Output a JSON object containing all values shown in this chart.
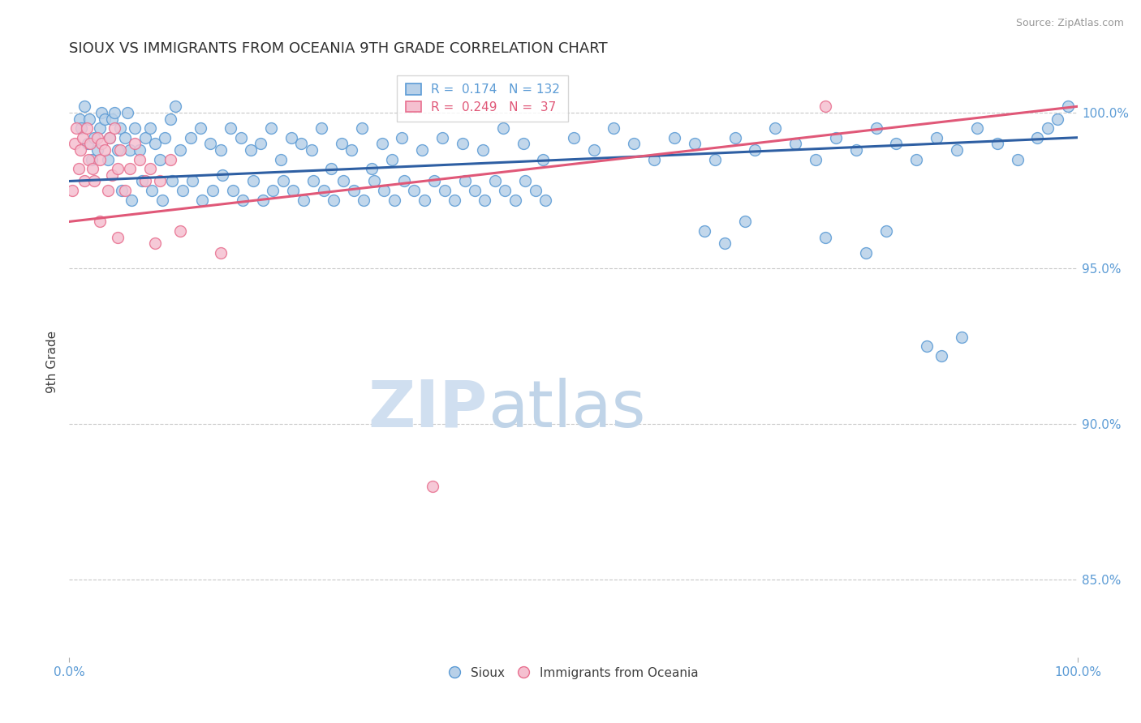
{
  "title": "SIOUX VS IMMIGRANTS FROM OCEANIA 9TH GRADE CORRELATION CHART",
  "source_text": "Source: ZipAtlas.com",
  "ylabel": "9th Grade",
  "xlim": [
    0.0,
    100.0
  ],
  "ylim": [
    82.5,
    101.5
  ],
  "yticks": [
    85.0,
    90.0,
    95.0,
    100.0
  ],
  "ytick_labels": [
    "85.0%",
    "90.0%",
    "95.0%",
    "100.0%"
  ],
  "blue_R": 0.174,
  "blue_N": 132,
  "pink_R": 0.249,
  "pink_N": 37,
  "blue_color": "#b8d0e8",
  "blue_edge_color": "#5b9bd5",
  "pink_color": "#f5c0d0",
  "pink_edge_color": "#e87090",
  "blue_line_color": "#2e5fa3",
  "pink_line_color": "#e05878",
  "grid_color": "#c8c8c8",
  "background_color": "#ffffff",
  "watermark_color": "#d0dff0",
  "title_color": "#303030",
  "axis_label_color": "#404040",
  "tick_label_color": "#5b9bd5",
  "legend_text_color_blue": "#5b9bd5",
  "legend_text_color_pink": "#e05878",
  "blue_scatter_x": [
    1.0,
    1.2,
    1.5,
    1.8,
    2.0,
    2.2,
    2.5,
    2.8,
    3.0,
    3.2,
    3.5,
    3.8,
    4.0,
    4.2,
    4.5,
    4.8,
    5.0,
    5.5,
    5.8,
    6.0,
    6.5,
    7.0,
    7.5,
    8.0,
    8.5,
    9.0,
    9.5,
    10.0,
    10.5,
    11.0,
    12.0,
    13.0,
    14.0,
    15.0,
    16.0,
    17.0,
    18.0,
    19.0,
    20.0,
    21.0,
    22.0,
    23.0,
    24.0,
    25.0,
    26.0,
    27.0,
    28.0,
    29.0,
    30.0,
    31.0,
    32.0,
    33.0,
    35.0,
    37.0,
    39.0,
    41.0,
    43.0,
    45.0,
    47.0,
    50.0,
    52.0,
    54.0,
    56.0,
    58.0,
    60.0,
    62.0,
    64.0,
    66.0,
    68.0,
    70.0,
    72.0,
    74.0,
    76.0,
    78.0,
    80.0,
    82.0,
    84.0,
    86.0,
    88.0,
    90.0,
    92.0,
    94.0,
    96.0,
    97.0,
    98.0,
    99.0,
    5.2,
    6.2,
    7.2,
    8.2,
    9.2,
    10.2,
    11.2,
    12.2,
    13.2,
    14.2,
    15.2,
    16.2,
    17.2,
    18.2,
    19.2,
    20.2,
    21.2,
    22.2,
    23.2,
    24.2,
    25.2,
    26.2,
    27.2,
    28.2,
    29.2,
    30.2,
    31.2,
    32.2,
    33.2,
    34.2,
    35.2,
    36.2,
    37.2,
    38.2,
    39.2,
    40.2,
    41.2,
    42.2,
    43.2,
    44.2,
    45.2,
    46.2,
    47.2,
    63.0,
    65.0,
    67.0,
    75.0,
    79.0,
    81.0,
    85.0,
    86.5,
    88.5
  ],
  "blue_scatter_y": [
    99.8,
    99.5,
    100.2,
    99.0,
    99.8,
    98.5,
    99.2,
    98.8,
    99.5,
    100.0,
    99.8,
    98.5,
    99.2,
    99.8,
    100.0,
    98.8,
    99.5,
    99.2,
    100.0,
    98.8,
    99.5,
    98.8,
    99.2,
    99.5,
    99.0,
    98.5,
    99.2,
    99.8,
    100.2,
    98.8,
    99.2,
    99.5,
    99.0,
    98.8,
    99.5,
    99.2,
    98.8,
    99.0,
    99.5,
    98.5,
    99.2,
    99.0,
    98.8,
    99.5,
    98.2,
    99.0,
    98.8,
    99.5,
    98.2,
    99.0,
    98.5,
    99.2,
    98.8,
    99.2,
    99.0,
    98.8,
    99.5,
    99.0,
    98.5,
    99.2,
    98.8,
    99.5,
    99.0,
    98.5,
    99.2,
    99.0,
    98.5,
    99.2,
    98.8,
    99.5,
    99.0,
    98.5,
    99.2,
    98.8,
    99.5,
    99.0,
    98.5,
    99.2,
    98.8,
    99.5,
    99.0,
    98.5,
    99.2,
    99.5,
    99.8,
    100.2,
    97.5,
    97.2,
    97.8,
    97.5,
    97.2,
    97.8,
    97.5,
    97.8,
    97.2,
    97.5,
    98.0,
    97.5,
    97.2,
    97.8,
    97.2,
    97.5,
    97.8,
    97.5,
    97.2,
    97.8,
    97.5,
    97.2,
    97.8,
    97.5,
    97.2,
    97.8,
    97.5,
    97.2,
    97.8,
    97.5,
    97.2,
    97.8,
    97.5,
    97.2,
    97.8,
    97.5,
    97.2,
    97.8,
    97.5,
    97.2,
    97.8,
    97.5,
    97.2,
    96.2,
    95.8,
    96.5,
    96.0,
    95.5,
    96.2,
    92.5,
    92.2,
    92.8
  ],
  "pink_scatter_x": [
    0.3,
    0.5,
    0.7,
    0.9,
    1.1,
    1.3,
    1.5,
    1.7,
    1.9,
    2.1,
    2.3,
    2.5,
    2.8,
    3.0,
    3.2,
    3.5,
    3.8,
    4.0,
    4.2,
    4.5,
    4.8,
    5.0,
    5.5,
    6.0,
    6.5,
    7.0,
    7.5,
    8.0,
    9.0,
    10.0,
    3.0,
    4.8,
    8.5,
    11.0,
    15.0,
    36.0,
    75.0
  ],
  "pink_scatter_y": [
    97.5,
    99.0,
    99.5,
    98.2,
    98.8,
    99.2,
    97.8,
    99.5,
    98.5,
    99.0,
    98.2,
    97.8,
    99.2,
    98.5,
    99.0,
    98.8,
    97.5,
    99.2,
    98.0,
    99.5,
    98.2,
    98.8,
    97.5,
    98.2,
    99.0,
    98.5,
    97.8,
    98.2,
    97.8,
    98.5,
    96.5,
    96.0,
    95.8,
    96.2,
    95.5,
    88.0,
    100.2
  ],
  "blue_trend_x": [
    0.0,
    100.0
  ],
  "blue_trend_y": [
    97.8,
    99.2
  ],
  "pink_trend_x": [
    0.0,
    100.0
  ],
  "pink_trend_y": [
    96.5,
    100.2
  ]
}
